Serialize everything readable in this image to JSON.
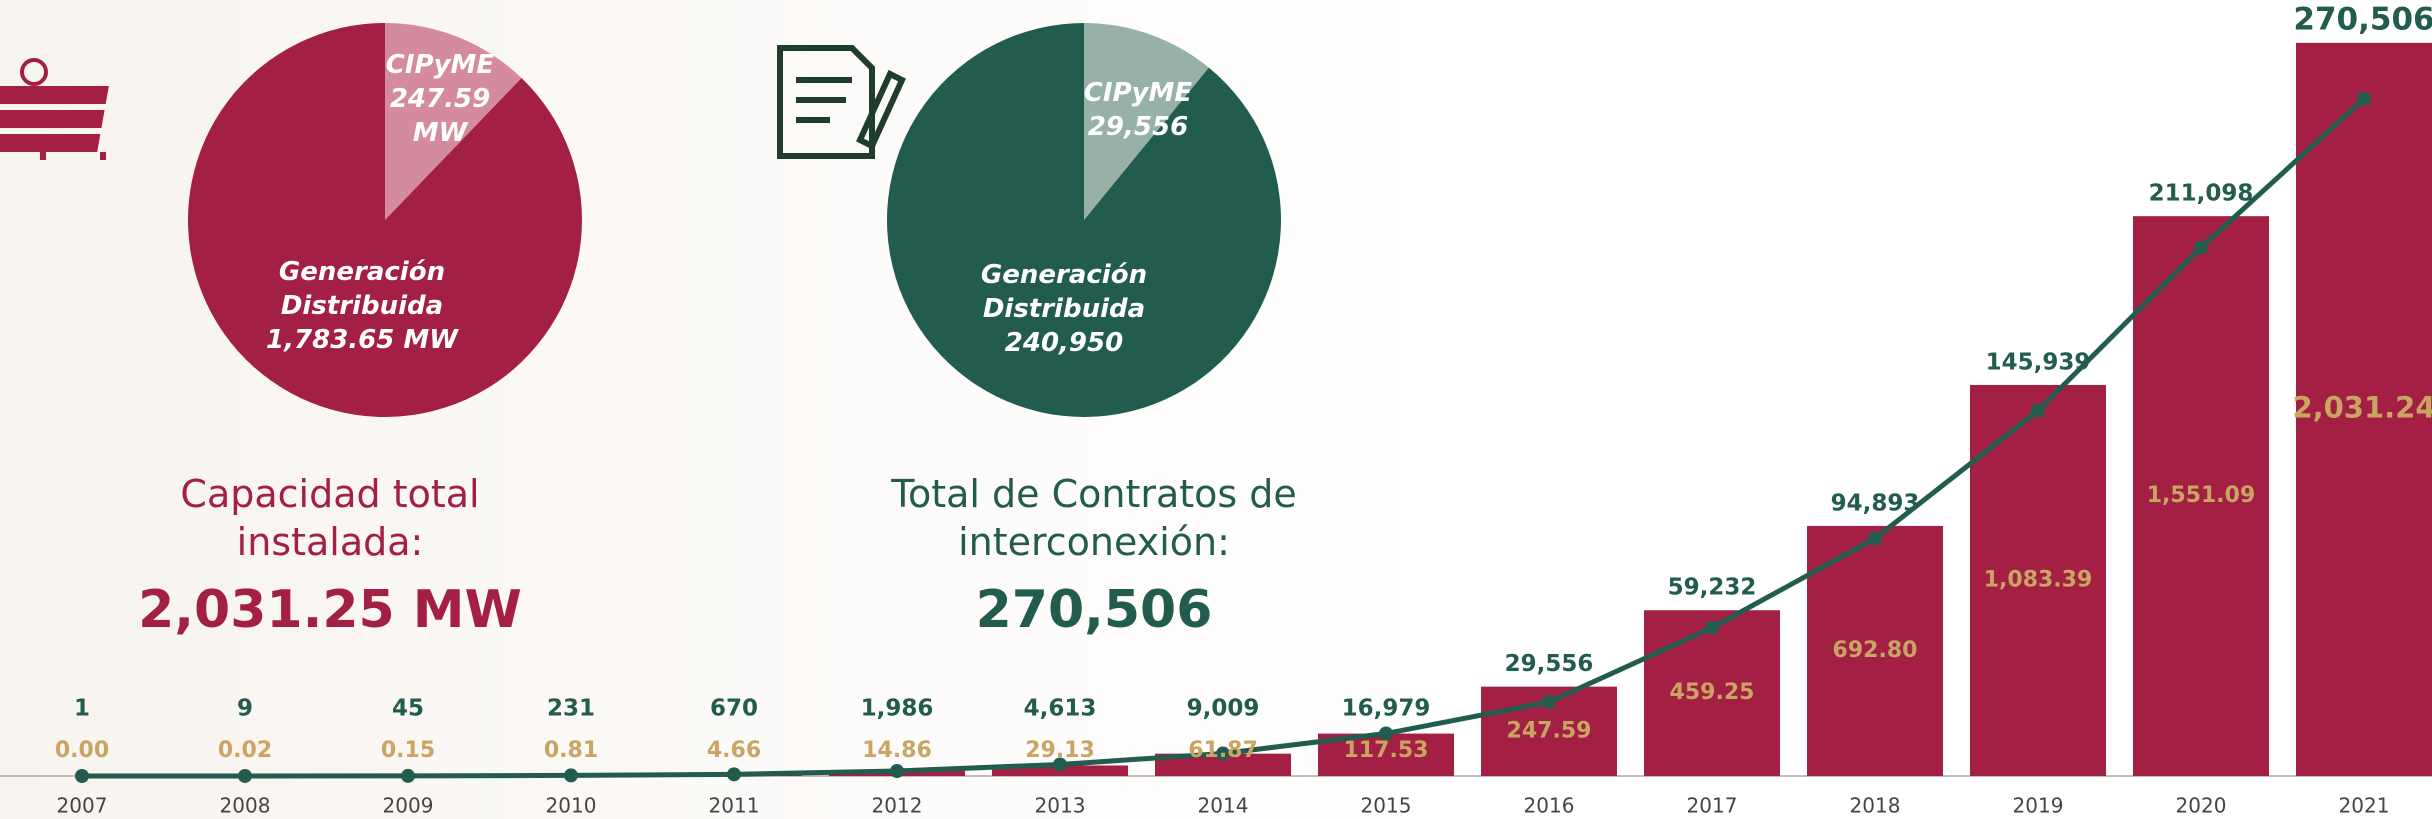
{
  "chart_data": [
    {
      "type": "pie",
      "categories": [
        "CIPyME",
        "Generación Distribuida"
      ],
      "values": [
        247.59,
        1783.65
      ],
      "value_labels": [
        "247.59 MW",
        "1,783.65 MW"
      ],
      "colors": [
        "#d58b9f",
        "#a31f43"
      ],
      "caption": "Capacidad total instalada:",
      "total": "2,031.25 MW",
      "total_color": "#a31f43"
    },
    {
      "type": "pie",
      "categories": [
        "CIPyME",
        "Generación Distribuida"
      ],
      "values": [
        29556,
        240950
      ],
      "value_labels": [
        "29,556",
        "240,950"
      ],
      "colors": [
        "#97b1a6",
        "#225c4f"
      ],
      "caption": "Total de Contratos de interconexión:",
      "total": "270,506",
      "total_color": "#225c4f"
    },
    {
      "type": "bar_line",
      "categories": [
        "2007",
        "2008",
        "2009",
        "2010",
        "2011",
        "2012",
        "2013",
        "2014",
        "2015",
        "2016",
        "2017",
        "2018",
        "2019",
        "2020",
        "2021"
      ],
      "ylim": [
        0,
        2150
      ],
      "y2lim": [
        0,
        310000
      ],
      "series": [
        {
          "color": "#a31f43",
          "label_color": "#c9a463",
          "values": [
            0,
            0.02,
            0.15,
            0.81,
            4.66,
            14.86,
            29.13,
            61.87,
            117.53,
            247.59,
            459.25,
            692.8,
            1083.39,
            1551.09,
            2031.24
          ],
          "value_labels": [
            "0.00",
            "0.02",
            "0.15",
            "0.81",
            "4.66",
            "14.86",
            "29.13",
            "61.87",
            "117.53",
            "247.59",
            "459.25",
            "692.80",
            "1,083.39",
            "1,551.09",
            "2,031.24"
          ]
        },
        {
          "color": "#225c4f",
          "axis": "y2",
          "values": [
            1,
            9,
            45,
            231,
            670,
            1986,
            4613,
            9009,
            16979,
            29556,
            59232,
            94893,
            145939,
            211098,
            270506
          ],
          "value_labels": [
            "1",
            "9",
            "45",
            "231",
            "670",
            "1,986",
            "4,613",
            "9,009",
            "16,979",
            "29,556",
            "59,232",
            "94,893",
            "145,939",
            "211,098",
            "270,506"
          ]
        }
      ]
    }
  ]
}
